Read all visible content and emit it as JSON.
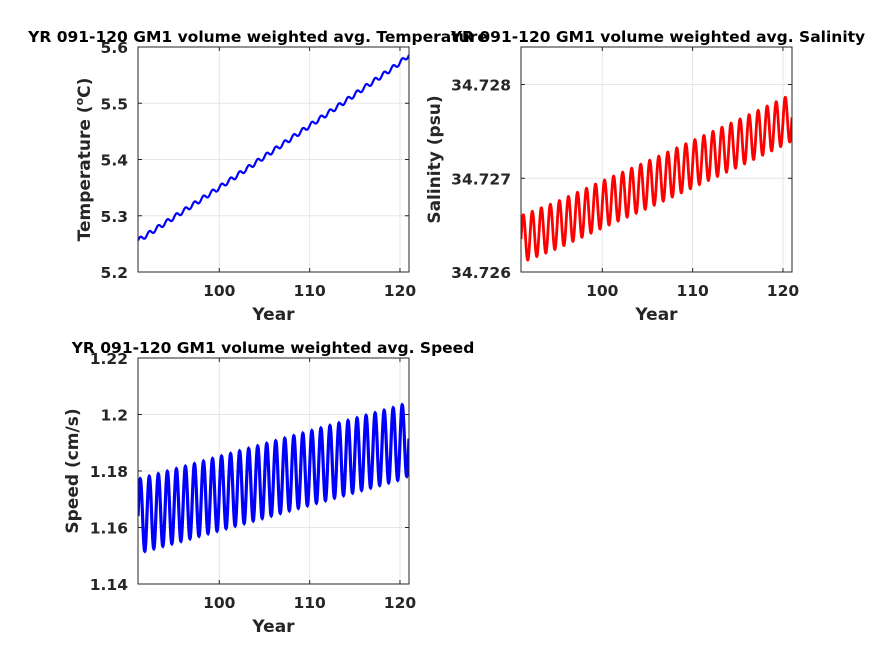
{
  "chart_data": [
    {
      "type": "line",
      "title": "YR 091-120 GM1 volume weighted avg. Temperature",
      "xlabel": "Year",
      "ylabel": "Temperature (°C)",
      "ylabel_parts": {
        "before": "Temperature (",
        "sup": "o",
        "after": "C)"
      },
      "xlim": [
        91,
        121
      ],
      "ylim": [
        5.2,
        5.6
      ],
      "xticks": [
        100,
        110,
        120
      ],
      "yticks": [
        5.2,
        5.3,
        5.4,
        5.5,
        5.6
      ],
      "ytick_labels": [
        "5.2",
        "5.3",
        "5.4",
        "5.5",
        "5.6"
      ],
      "grid": true,
      "color": "#0000ff",
      "series": [
        {
          "x": [
            91,
            92,
            94,
            96,
            98,
            100,
            102,
            104,
            106,
            108,
            110,
            112,
            114,
            116,
            118,
            120,
            121
          ],
          "values": [
            5.256,
            5.266,
            5.287,
            5.308,
            5.329,
            5.35,
            5.372,
            5.394,
            5.416,
            5.438,
            5.46,
            5.482,
            5.504,
            5.527,
            5.549,
            5.572,
            5.586
          ],
          "seasonal_amplitude": 0.004
        }
      ]
    },
    {
      "type": "line",
      "title": "YR 091-120 GM1 volume weighted avg. Salinity",
      "xlabel": "Year",
      "ylabel": "Salinity (psu)",
      "xlim": [
        91,
        121
      ],
      "ylim": [
        34.726,
        34.7284
      ],
      "xticks": [
        100,
        110,
        120
      ],
      "yticks": [
        34.726,
        34.727,
        34.728
      ],
      "ytick_labels": [
        "34.726",
        "34.727",
        "34.728"
      ],
      "grid": true,
      "color": "#ff0000",
      "series": [
        {
          "x": [
            91,
            95,
            100,
            105,
            110,
            115,
            120,
            121
          ],
          "values": [
            34.72635,
            34.7265,
            34.72672,
            34.72693,
            34.72715,
            34.72737,
            34.7276,
            34.72765
          ],
          "seasonal_amplitude": 0.00025
        }
      ]
    },
    {
      "type": "line",
      "title": "YR 091-120 GM1 volume weighted avg. Speed",
      "xlabel": "Year",
      "ylabel": "Speed (cm/s)",
      "xlim": [
        91,
        121
      ],
      "ylim": [
        1.14,
        1.22
      ],
      "xticks": [
        100,
        110,
        120
      ],
      "yticks": [
        1.14,
        1.16,
        1.18,
        1.2,
        1.22
      ],
      "ytick_labels": [
        "1.14",
        "1.16",
        "1.18",
        "1.2",
        "1.22"
      ],
      "grid": true,
      "color": "#0000ff",
      "series": [
        {
          "x": [
            91,
            95,
            100,
            105,
            110,
            115,
            120,
            121
          ],
          "values": [
            1.164,
            1.1675,
            1.172,
            1.1765,
            1.181,
            1.1855,
            1.19,
            1.1915
          ],
          "seasonal_amplitude": 0.013
        }
      ]
    }
  ]
}
